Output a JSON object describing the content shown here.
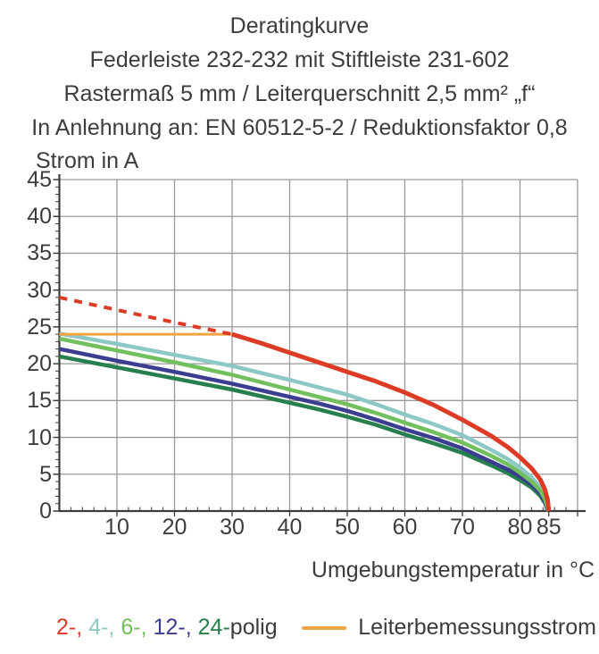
{
  "title": {
    "lines": [
      "Deratingkurve",
      "Federleiste 232-232 mit Stiftleiste 231-602",
      "Rastermaß 5 mm / Leiterquerschnitt 2,5 mm² „f“",
      "In Anlehnung an: EN 60512-5-2 / Reduktionsfaktor 0,8"
    ]
  },
  "chart_data": {
    "type": "line",
    "title": "Deratingkurve",
    "xlabel": "Umgebungstemperatur in °C",
    "ylabel": "Strom in A",
    "xlim": [
      0,
      90
    ],
    "ylim": [
      0,
      45
    ],
    "x_tick_labels": [
      10,
      20,
      30,
      40,
      50,
      60,
      70,
      80,
      85
    ],
    "x_grid_step": 10,
    "x_minor_step": 2,
    "y_tick_labels": [
      0,
      5,
      10,
      15,
      20,
      25,
      30,
      35,
      40,
      45
    ],
    "y_grid_step": 5,
    "y_minor_step": 1,
    "grid": true,
    "colors": {
      "grid": "#9a9a9a",
      "axis": "#3c3c3b",
      "red": "#dc3b26",
      "cyan": "#8cc8c6",
      "light_green": "#72bf5d",
      "navy": "#3b3e90",
      "dark_green": "#277f4e",
      "orange": "#f2a444"
    },
    "series": [
      {
        "name": "24-polig",
        "color": "#277f4e",
        "width": 4.5,
        "points": [
          [
            0,
            21.0
          ],
          [
            10,
            19.5
          ],
          [
            20,
            18.0
          ],
          [
            30,
            16.5
          ],
          [
            40,
            14.7
          ],
          [
            45,
            13.8
          ],
          [
            50,
            12.8
          ],
          [
            55,
            11.7
          ],
          [
            60,
            10.4
          ],
          [
            65,
            9.2
          ],
          [
            70,
            7.9
          ],
          [
            75,
            6.2
          ],
          [
            78,
            5.1
          ],
          [
            80,
            4.2
          ],
          [
            82,
            3.2
          ],
          [
            83.5,
            2.1
          ],
          [
            84.4,
            1.0
          ],
          [
            84.8,
            0
          ]
        ]
      },
      {
        "name": "12-polig",
        "color": "#3b3e90",
        "width": 4.5,
        "points": [
          [
            0,
            22.0
          ],
          [
            10,
            20.4
          ],
          [
            20,
            18.9
          ],
          [
            30,
            17.3
          ],
          [
            40,
            15.5
          ],
          [
            45,
            14.6
          ],
          [
            50,
            13.6
          ],
          [
            55,
            12.4
          ],
          [
            60,
            11.1
          ],
          [
            65,
            9.9
          ],
          [
            70,
            8.5
          ],
          [
            75,
            6.7
          ],
          [
            78,
            5.6
          ],
          [
            80,
            4.7
          ],
          [
            82,
            3.6
          ],
          [
            83.5,
            2.4
          ],
          [
            84.4,
            1.2
          ],
          [
            84.8,
            0
          ]
        ]
      },
      {
        "name": "4-polig",
        "color": "#8cc8c6",
        "width": 4.5,
        "points": [
          [
            0,
            24.1
          ],
          [
            10,
            22.7
          ],
          [
            20,
            21.2
          ],
          [
            30,
            19.7
          ],
          [
            40,
            17.8
          ],
          [
            45,
            16.8
          ],
          [
            50,
            15.8
          ],
          [
            55,
            14.5
          ],
          [
            60,
            13.1
          ],
          [
            65,
            11.8
          ],
          [
            70,
            10.3
          ],
          [
            75,
            8.3
          ],
          [
            78,
            7.0
          ],
          [
            80,
            5.9
          ],
          [
            82,
            4.6
          ],
          [
            83.5,
            3.2
          ],
          [
            84.4,
            1.8
          ],
          [
            84.9,
            0
          ]
        ]
      },
      {
        "name": "6-polig",
        "color": "#72bf5d",
        "width": 4.5,
        "points": [
          [
            0,
            23.4
          ],
          [
            10,
            21.8
          ],
          [
            20,
            20.2
          ],
          [
            30,
            18.5
          ],
          [
            40,
            16.5
          ],
          [
            45,
            15.5
          ],
          [
            50,
            14.5
          ],
          [
            55,
            13.3
          ],
          [
            60,
            12.0
          ],
          [
            65,
            10.7
          ],
          [
            70,
            9.3
          ],
          [
            75,
            7.5
          ],
          [
            78,
            6.3
          ],
          [
            80,
            5.2
          ],
          [
            82,
            4.0
          ],
          [
            83.5,
            2.8
          ],
          [
            84.4,
            1.5
          ],
          [
            84.9,
            0
          ]
        ]
      },
      {
        "name": "Leiterbemessungsstrom",
        "color": "#f2a444",
        "width": 3,
        "points": [
          [
            0,
            24
          ],
          [
            30,
            24
          ]
        ]
      },
      {
        "name": "2-polig gestrichelt",
        "color": "#dc3b26",
        "width": 4,
        "dash": "9 8",
        "points": [
          [
            0,
            29
          ],
          [
            10,
            27.3
          ],
          [
            20,
            25.6
          ],
          [
            30,
            24
          ]
        ]
      },
      {
        "name": "2-polig",
        "color": "#dc3b26",
        "width": 5,
        "points": [
          [
            30,
            24
          ],
          [
            35,
            22.8
          ],
          [
            40,
            21.5
          ],
          [
            45,
            20.2
          ],
          [
            50,
            18.9
          ],
          [
            55,
            17.6
          ],
          [
            60,
            16.1
          ],
          [
            65,
            14.4
          ],
          [
            70,
            12.4
          ],
          [
            75,
            10.2
          ],
          [
            78,
            8.6
          ],
          [
            80,
            7.3
          ],
          [
            82,
            5.8
          ],
          [
            83.5,
            4.3
          ],
          [
            84.3,
            3.0
          ],
          [
            84.8,
            1.5
          ],
          [
            85,
            0
          ]
        ]
      }
    ]
  },
  "legend": {
    "polig_segments": [
      {
        "label": "2-,",
        "color": "#dc3b26"
      },
      {
        "label": "4-,",
        "color": "#8cc8c6"
      },
      {
        "label": "6-,",
        "color": "#72bf5d"
      },
      {
        "label": "12-,",
        "color": "#3b3e90"
      },
      {
        "label": "24-",
        "color": "#277f4e"
      }
    ],
    "polig_suffix": "polig",
    "rated_current_label": "Leiterbemessungsstrom",
    "rated_current_color": "#f2a444"
  }
}
